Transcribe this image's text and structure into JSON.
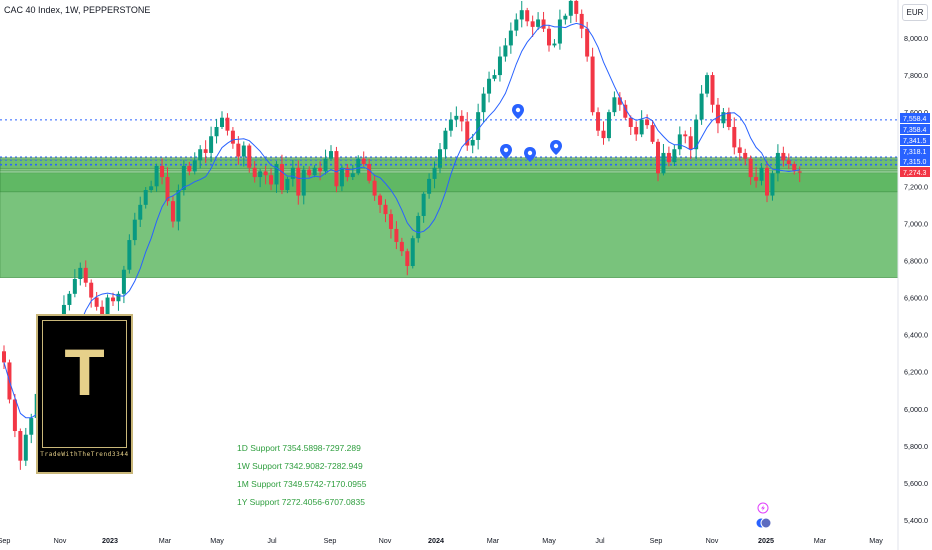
{
  "header": {
    "title": "CAC 40 Index, 1W, PEPPERSTONE",
    "currency": "EUR"
  },
  "watermark": {
    "logo_letter": "T",
    "logo_text": "TradeWithTheTrend3344"
  },
  "supports": [
    "1D Support 7354.5898-7297.289",
    "1W Support 7342.9082-7282.949",
    "1M Support 7349.5742-7170.0955",
    "1Y Support 7272.4056-6707.0835"
  ],
  "colors": {
    "bull": "#089981",
    "bear": "#f23645",
    "ma": "#2962ff",
    "zone": "#4caf50",
    "level_line": "#2962ff"
  },
  "chart_data": {
    "type": "candlestick",
    "title": "CAC 40 Index, 1W, PEPPERSTONE",
    "x_tick_labels": [
      "Sep",
      "Nov",
      "2023",
      "Mar",
      "May",
      "Jul",
      "Sep",
      "Nov",
      "2024",
      "Mar",
      "May",
      "Jul",
      "Sep",
      "Nov",
      "2025",
      "Mar",
      "May"
    ],
    "y_tick_labels": [
      "5,400.0",
      "5,600.0",
      "5,800.0",
      "6,000.0",
      "6,200.0",
      "6,400.0",
      "6,600.0",
      "6,800.0",
      "7,000.0",
      "7,200.0",
      "7,400.0",
      "7,600.0",
      "7,800.0",
      "8,000.0"
    ],
    "ylim": [
      5380,
      8170
    ],
    "price_labels": [
      {
        "value": 7558.4,
        "text": "7,558.4",
        "color": "#2962ff"
      },
      {
        "value": 7358.4,
        "text": "7,358.4",
        "color": "#2962ff"
      },
      {
        "value": 7341.5,
        "text": "7,341.5",
        "color": "#2962ff"
      },
      {
        "value": 7318.1,
        "text": "7,318.1",
        "color": "#2962ff"
      },
      {
        "value": 7315.0,
        "text": "7,315.0",
        "color": "#2962ff"
      },
      {
        "value": 7274.3,
        "text": "7,274.3",
        "color": "#f23645"
      }
    ],
    "zones": [
      {
        "from": 6707.0835,
        "to": 7272.4056,
        "opacity": 0.75
      },
      {
        "from": 7170.0955,
        "to": 7349.5742,
        "opacity": 0.55
      },
      {
        "from": 7282.949,
        "to": 7342.9082,
        "opacity": 0.35
      },
      {
        "from": 7297.289,
        "to": 7354.5898,
        "opacity": 0.35
      }
    ],
    "dotted_levels": [
      7558.4,
      7358.4,
      7341.5,
      7318.1,
      7315.0
    ],
    "grid": false,
    "candles_close": [
      6250,
      6050,
      5880,
      5720,
      5860,
      5950,
      6080,
      6120,
      6200,
      6350,
      6380,
      6560,
      6620,
      6700,
      6760,
      6680,
      6600,
      6550,
      6480,
      6600,
      6580,
      6620,
      6750,
      6910,
      7020,
      7100,
      7180,
      7200,
      7310,
      7250,
      7120,
      7010,
      7180,
      7310,
      7280,
      7340,
      7400,
      7380,
      7470,
      7520,
      7570,
      7500,
      7430,
      7360,
      7420,
      7300,
      7250,
      7280,
      7260,
      7210,
      7320,
      7180,
      7240,
      7300,
      7150,
      7290,
      7260,
      7300,
      7280,
      7350,
      7390,
      7200,
      7300,
      7250,
      7270,
      7350,
      7320,
      7230,
      7150,
      7100,
      7050,
      6970,
      6900,
      6850,
      6770,
      6920,
      7040,
      7160,
      7240,
      7300,
      7400,
      7500,
      7560,
      7580,
      7550,
      7420,
      7450,
      7600,
      7700,
      7780,
      7800,
      7900,
      7960,
      8040,
      8100,
      8150,
      8090,
      8060,
      8100,
      8050,
      7960,
      7970,
      8100,
      8120,
      8200,
      8130,
      8050,
      7900,
      7600,
      7500,
      7460,
      7600,
      7680,
      7640,
      7570,
      7520,
      7480,
      7560,
      7530,
      7440,
      7270,
      7380,
      7330,
      7400,
      7480,
      7470,
      7400,
      7560,
      7700,
      7800,
      7640,
      7540,
      7600,
      7520,
      7410,
      7380,
      7350,
      7250,
      7230,
      7300,
      7150,
      7270,
      7380,
      7340,
      7320,
      7280,
      7274.3
    ],
    "moving_average_type": "line"
  }
}
